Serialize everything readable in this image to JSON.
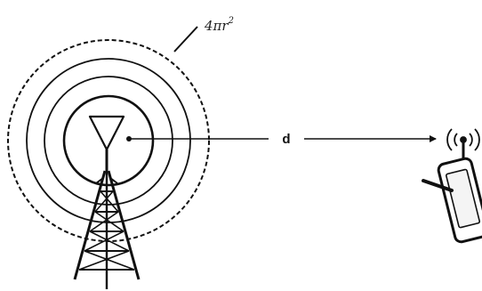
{
  "labels": {
    "area_formula": "4πr",
    "area_exponent": "2",
    "distance": "d"
  },
  "icons": {
    "tower": "transmission-tower-icon",
    "antenna": "antenna-triangle-icon",
    "phone": "mobile-phone-icon",
    "signal": "signal-waves-icon"
  },
  "colors": {
    "stroke": "#111111",
    "background": "#ffffff"
  }
}
